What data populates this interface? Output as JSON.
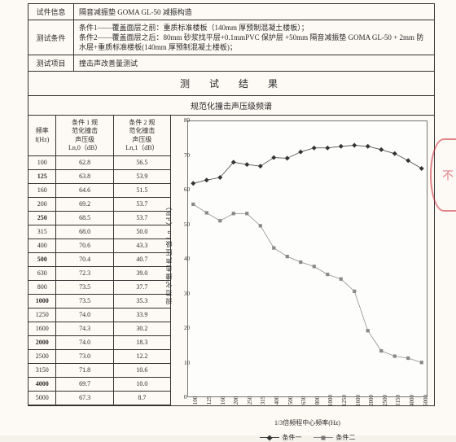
{
  "header": {
    "row0": {
      "label": "试件信息",
      "text": "隔音减振垫 GOMA GL-50 减振构造"
    },
    "row1": {
      "label": "测试条件",
      "text": "条件1——覆盖面层之前：重质标准楼板（140mm 厚预制混凝土楼板）；\n条件2——覆盖面层之后：80mm 砂浆找平层+0.1mmPVC 保护层 +50mm 隔音减振垫 GOMA GL-50 + 2mm 防水层+重质标准楼板(140mm 厚预制混凝土楼板)；"
    },
    "row2": {
      "label": "测试项目",
      "text": "撞击声改善量测试"
    }
  },
  "title": "测　试　结　果",
  "subtitle": "规范化撞击声压级频谱",
  "table": {
    "head": {
      "c0": "频率\nf(Hz)",
      "c1": "条件 1 规\n范化撞击\n声压级\nLn,0（dB）",
      "c2": "条件 2 规\n范化撞击\n声压级\nLn,1（dB）"
    },
    "rows": [
      {
        "f": "100",
        "a": "62.8",
        "b": "56.5"
      },
      {
        "f": "125",
        "a": "63.8",
        "b": "53.9"
      },
      {
        "f": "160",
        "a": "64.6",
        "b": "51.5"
      },
      {
        "f": "200",
        "a": "69.2",
        "b": "53.7"
      },
      {
        "f": "250",
        "a": "68.5",
        "b": "53.7"
      },
      {
        "f": "315",
        "a": "68.0",
        "b": "50.0"
      },
      {
        "f": "400",
        "a": "70.6",
        "b": "43.3"
      },
      {
        "f": "500",
        "a": "70.4",
        "b": "40.7"
      },
      {
        "f": "630",
        "a": "72.3",
        "b": "39.0"
      },
      {
        "f": "800",
        "a": "73.5",
        "b": "37.7"
      },
      {
        "f": "1000",
        "a": "73.5",
        "b": "35.3"
      },
      {
        "f": "1250",
        "a": "74.0",
        "b": "33.9"
      },
      {
        "f": "1600",
        "a": "74.3",
        "b": "30.2"
      },
      {
        "f": "2000",
        "a": "74.0",
        "b": "18.3"
      },
      {
        "f": "2500",
        "a": "73.0",
        "b": "12.2"
      },
      {
        "f": "3150",
        "a": "71.8",
        "b": "10.6"
      },
      {
        "f": "4000",
        "a": "69.7",
        "b": "10.0"
      },
      {
        "f": "5000",
        "a": "67.3",
        "b": "8.7"
      }
    ]
  },
  "chart": {
    "ymin": 0,
    "ymax": 80,
    "ystep": 10,
    "xlabels": [
      "100",
      "125",
      "160",
      "200",
      "250",
      "315",
      "400",
      "500",
      "630",
      "800",
      "1000",
      "1250",
      "1600",
      "2000",
      "2500",
      "3150",
      "4000",
      "5000"
    ],
    "xlabel": "1/3倍频程中心频率(Hz)",
    "ylabel": "规范化撞击声压级Ln（dB）",
    "series1": {
      "name": "条件一",
      "y": [
        62.8,
        63.8,
        64.6,
        69.2,
        68.5,
        68.0,
        70.6,
        70.4,
        72.3,
        73.5,
        73.5,
        74.0,
        74.3,
        74.0,
        73.0,
        71.8,
        69.7,
        67.3
      ]
    },
    "series2": {
      "name": "条件二",
      "y": [
        56.5,
        53.9,
        51.5,
        53.7,
        53.7,
        50.0,
        43.3,
        40.7,
        39.0,
        37.7,
        35.3,
        33.9,
        30.2,
        18.3,
        12.2,
        10.6,
        10.0,
        8.7
      ]
    },
    "colors": {
      "s1": "#333333",
      "s2": "#888888",
      "grid": "#fdfdfc",
      "border": "#777777"
    }
  },
  "stamp": "不"
}
